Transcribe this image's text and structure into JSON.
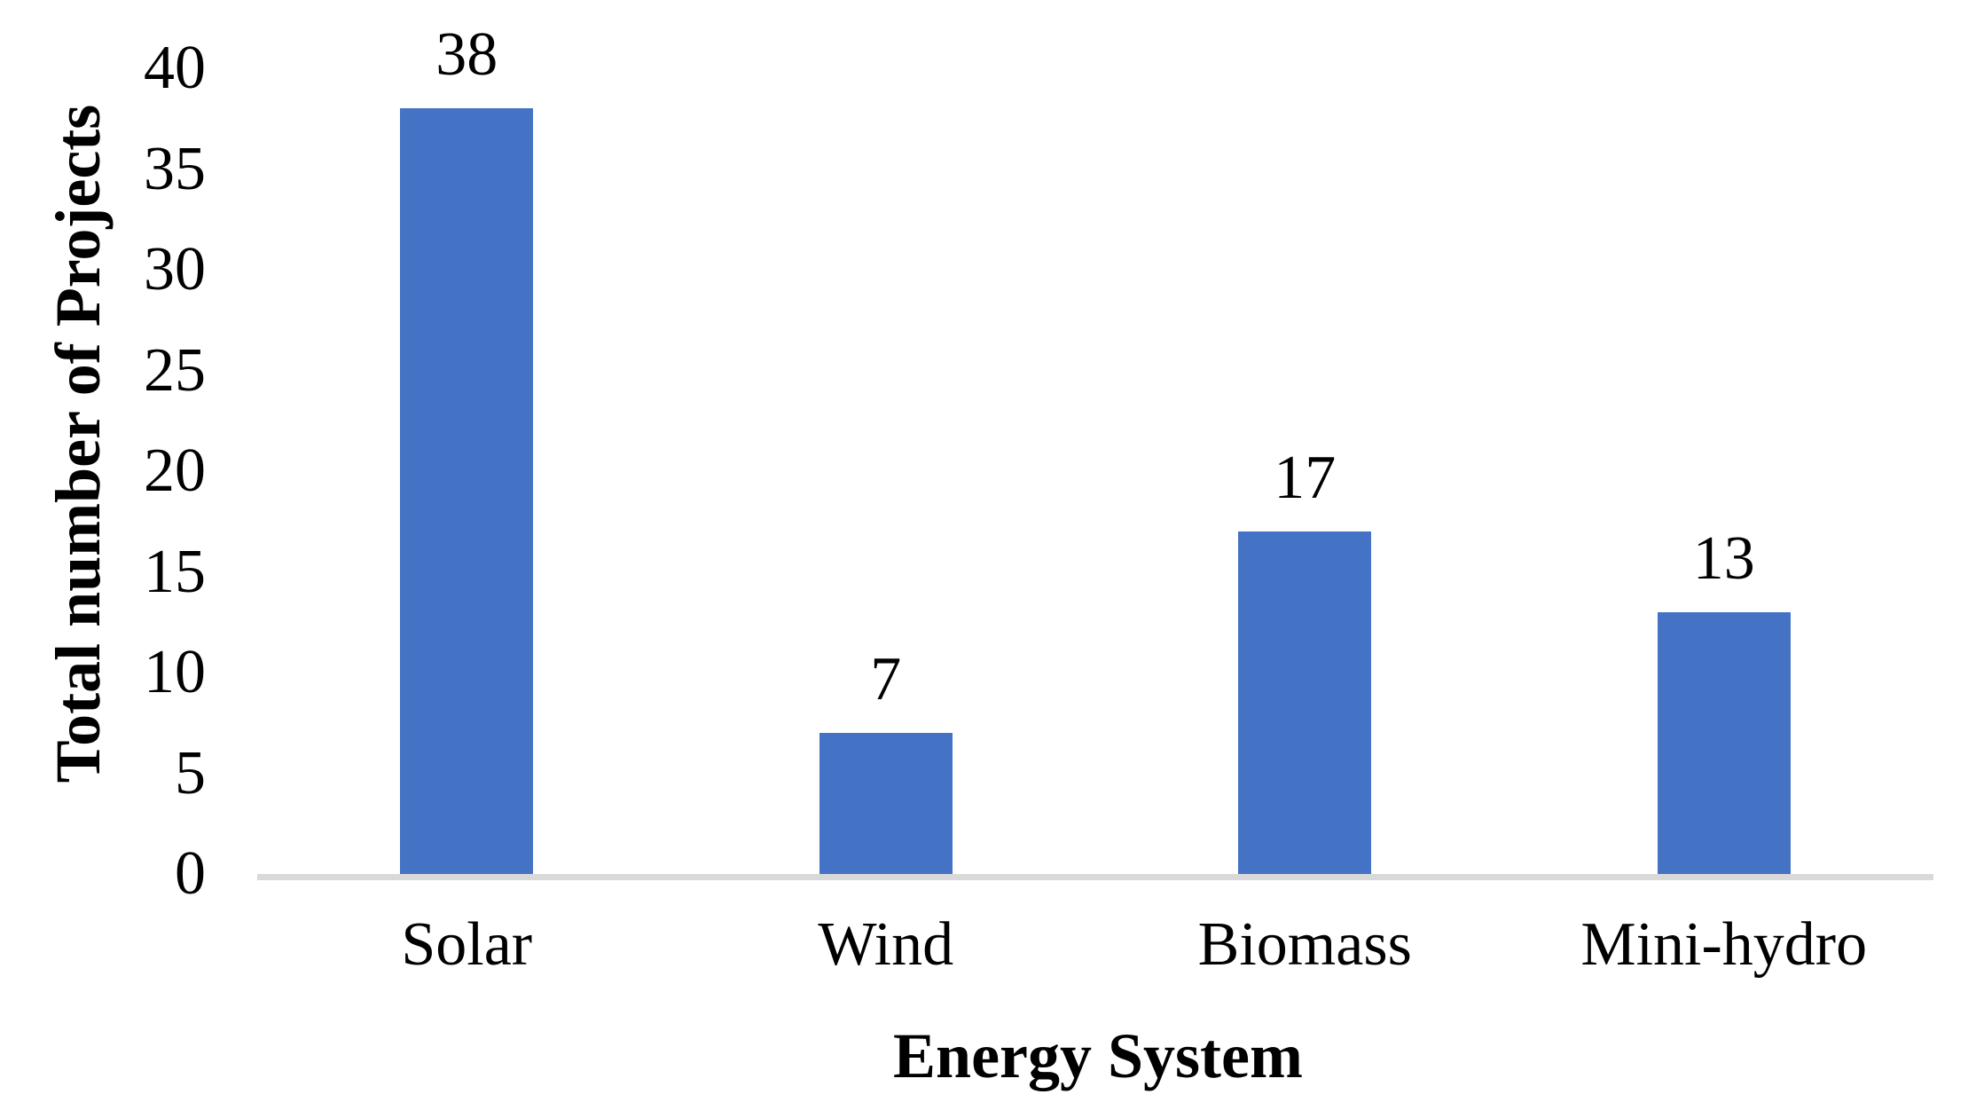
{
  "chart_data": {
    "type": "bar",
    "title": "",
    "categories": [
      "Solar",
      "Wind",
      "Biomass",
      "Mini-hydro"
    ],
    "values": [
      38,
      7,
      17,
      13
    ],
    "value_labels": [
      "38",
      "7",
      "17",
      "13"
    ],
    "xlabel": "Energy System",
    "ylabel": "Total number of Projects",
    "ylim": [
      0,
      40
    ],
    "yticks": [
      0,
      5,
      10,
      15,
      20,
      25,
      30,
      35,
      40
    ],
    "bar_color": "#4472C4",
    "axis_line_color": "#D9D9D9",
    "text_color": "#000000",
    "background_color": "#FFFFFF",
    "grid": "off",
    "legend": "none",
    "value_labels_position": "above-bars"
  }
}
